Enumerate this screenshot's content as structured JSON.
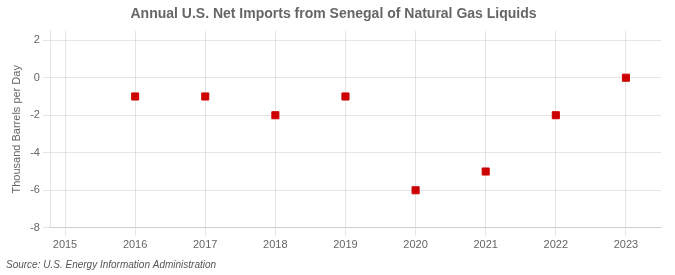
{
  "chart_data": {
    "type": "scatter",
    "title": "Annual U.S. Net Imports from Senegal of Natural Gas Liquids",
    "ylabel": "Thousand Barrels per Day",
    "source": "Source: U.S. Energy Information Administration",
    "x": [
      2016,
      2017,
      2018,
      2019,
      2020,
      2021,
      2022,
      2023
    ],
    "values": [
      -1,
      -1,
      -2,
      -1,
      -6,
      -5,
      -2,
      0
    ],
    "xlim": [
      2014.8,
      2023.5
    ],
    "ylim": [
      -8,
      2.5
    ],
    "xticks": [
      2015,
      2016,
      2017,
      2018,
      2019,
      2020,
      2021,
      2022,
      2023
    ],
    "yticks": [
      -8,
      -6,
      -4,
      -2,
      0,
      2
    ],
    "color": "#cc0000",
    "marker": "square",
    "grid": true
  }
}
